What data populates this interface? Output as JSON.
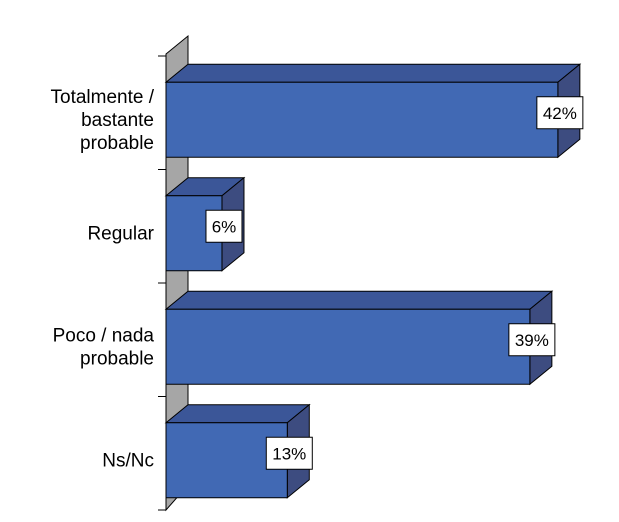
{
  "chart_data": {
    "type": "bar",
    "orientation": "horizontal",
    "three_d": true,
    "categories": [
      [
        "Totalmente /",
        "bastante",
        "probable"
      ],
      [
        "Regular"
      ],
      [
        "Poco / nada",
        "probable"
      ],
      [
        "Ns/Nc"
      ]
    ],
    "values": [
      42,
      6,
      39,
      13
    ],
    "value_labels": [
      "42%",
      "6%",
      "39%",
      "13%"
    ],
    "unit": "%",
    "title": "",
    "xlabel": "",
    "ylabel": "",
    "xlim": [
      0,
      45
    ],
    "grid": false,
    "legend": "none",
    "colors": {
      "bar_front": "#4169B4",
      "bar_top": "#3B5698",
      "bar_side": "#3D4C80",
      "wall": "#A6A6A6",
      "floor": "#8C8C8C",
      "outline": "#000000",
      "label_box": "#FFFFFF"
    }
  }
}
